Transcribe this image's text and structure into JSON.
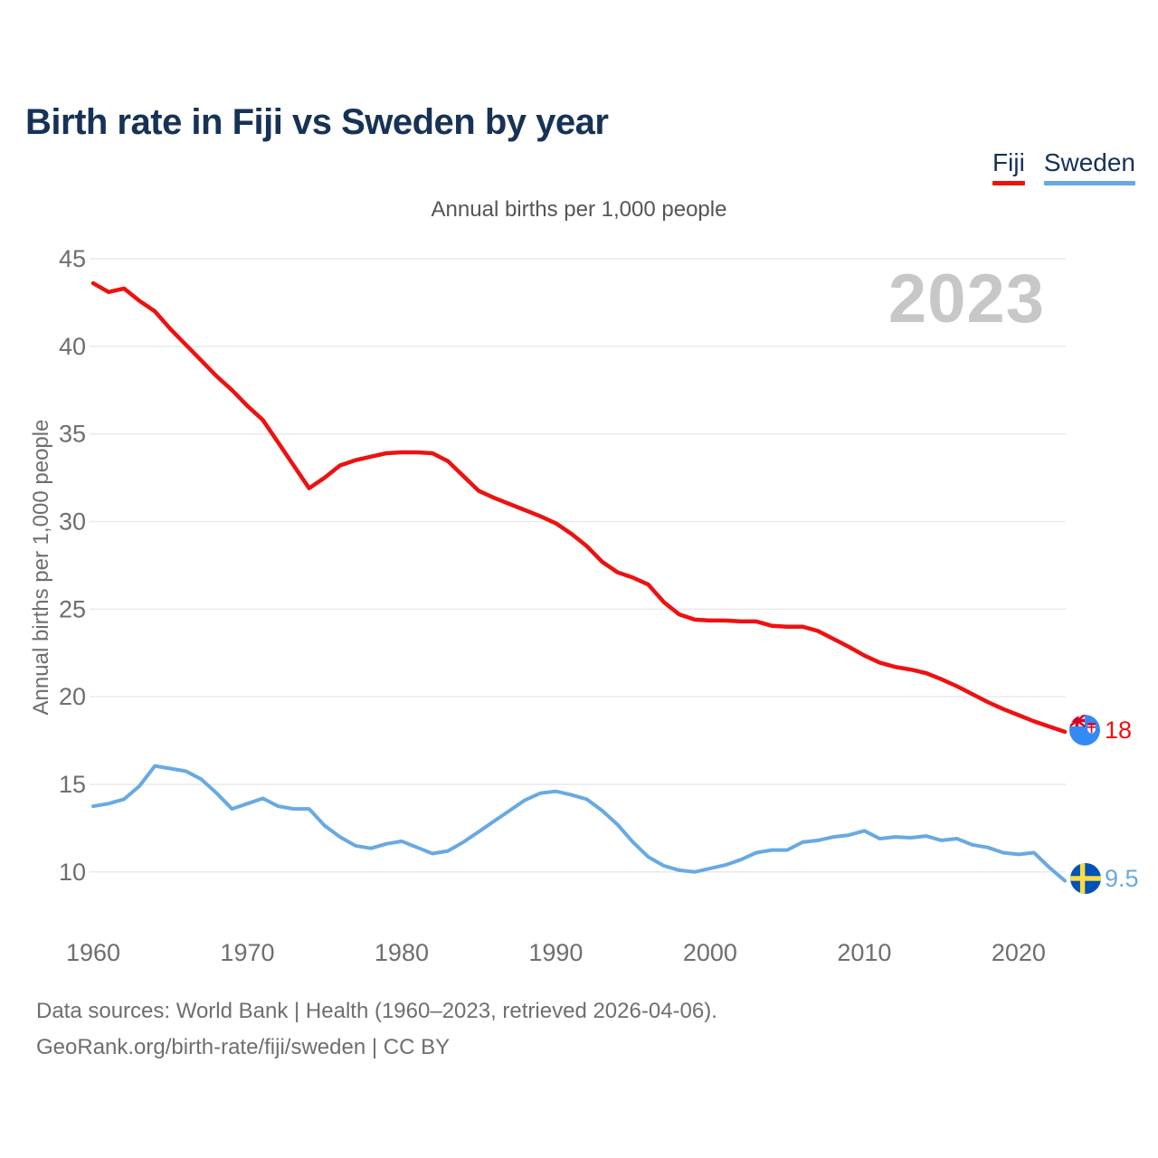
{
  "page": {
    "title": "Birth rate in Fiji vs Sweden by year",
    "subtitle": "Annual births per 1,000 people",
    "y_axis_title": "Annual births per 1,000 people",
    "watermark": "2023",
    "footer_line1": "Data sources: World Bank | Health (1960–2023, retrieved 2026-04-06).",
    "footer_line2": "GeoRank.org/birth-rate/fiji/sweden | CC BY"
  },
  "legend": {
    "items": [
      {
        "label": "Fiji",
        "color": "#ee1111"
      },
      {
        "label": "Sweden",
        "color": "#68a9e2"
      }
    ]
  },
  "colors": {
    "title": "#163257",
    "axis": "#6e6e6e",
    "subtitle": "#555555",
    "footer": "#6e6e6e",
    "watermark": "#c7c7c7",
    "grid": "#e9e9e9",
    "fiji": "#ee1111",
    "sweden": "#68a9e2"
  },
  "chart_data": {
    "type": "line",
    "title": "Annual births per 1,000 people",
    "ylabel": "Annual births per 1,000 people",
    "ylim": [
      10,
      45
    ],
    "grid": true,
    "legend_position": "top-right",
    "watermark_year": "2023",
    "y_ticks": [
      45,
      40,
      35,
      30,
      25,
      20,
      15,
      10
    ],
    "x_ticks": [
      1960,
      1970,
      1980,
      1990,
      2000,
      2010,
      2020
    ],
    "x": [
      1960,
      1961,
      1962,
      1963,
      1964,
      1965,
      1966,
      1967,
      1968,
      1969,
      1970,
      1971,
      1972,
      1973,
      1974,
      1975,
      1976,
      1977,
      1978,
      1979,
      1980,
      1981,
      1982,
      1983,
      1984,
      1985,
      1986,
      1987,
      1988,
      1989,
      1990,
      1991,
      1992,
      1993,
      1994,
      1995,
      1996,
      1997,
      1998,
      1999,
      2000,
      2001,
      2002,
      2003,
      2004,
      2005,
      2006,
      2007,
      2008,
      2009,
      2010,
      2011,
      2012,
      2013,
      2014,
      2015,
      2016,
      2017,
      2018,
      2019,
      2020,
      2021,
      2022,
      2023
    ],
    "series": [
      {
        "name": "Fiji",
        "color": "#ee1111",
        "end_label": "18",
        "values": [
          43.6,
          43.1,
          43.3,
          42.6,
          42.0,
          41.0,
          40.1,
          39.2,
          38.3,
          37.5,
          36.6,
          35.8,
          34.5,
          33.2,
          31.9,
          32.5,
          33.2,
          33.5,
          33.7,
          33.9,
          33.95,
          33.95,
          33.9,
          33.45,
          32.6,
          31.75,
          31.35,
          31.0,
          30.65,
          30.3,
          29.9,
          29.3,
          28.6,
          27.7,
          27.1,
          26.8,
          26.4,
          25.4,
          24.7,
          24.4,
          24.35,
          24.35,
          24.3,
          24.3,
          24.05,
          24.0,
          24.0,
          23.75,
          23.3,
          22.85,
          22.35,
          21.95,
          21.7,
          21.55,
          21.35,
          21.0,
          20.6,
          20.15,
          19.7,
          19.3,
          18.95,
          18.6,
          18.3,
          18.0
        ]
      },
      {
        "name": "Sweden",
        "color": "#68a9e2",
        "end_label": "9.5",
        "values": [
          13.75,
          13.9,
          14.15,
          14.9,
          16.05,
          15.9,
          15.75,
          15.3,
          14.5,
          13.6,
          13.9,
          14.2,
          13.75,
          13.6,
          13.6,
          12.65,
          12.0,
          11.5,
          11.35,
          11.6,
          11.75,
          11.4,
          11.05,
          11.2,
          11.7,
          12.3,
          12.9,
          13.5,
          14.1,
          14.5,
          14.6,
          14.4,
          14.15,
          13.5,
          12.7,
          11.7,
          10.85,
          10.35,
          10.1,
          10.0,
          10.2,
          10.4,
          10.7,
          11.1,
          11.25,
          11.25,
          11.7,
          11.8,
          12.0,
          12.1,
          12.35,
          11.9,
          12.0,
          11.95,
          12.05,
          11.8,
          11.9,
          11.55,
          11.4,
          11.1,
          11.0,
          11.1,
          10.25,
          9.5
        ]
      }
    ]
  }
}
